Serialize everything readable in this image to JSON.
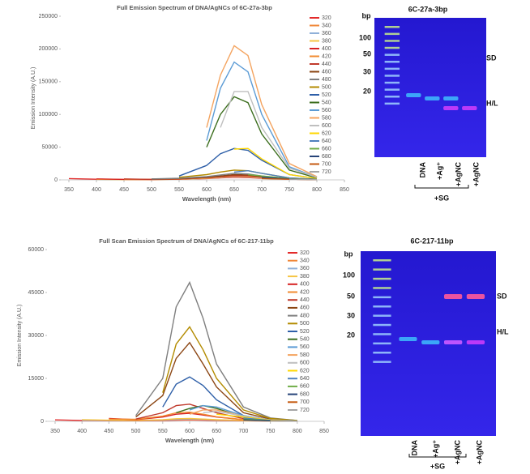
{
  "chart_data": [
    {
      "type": "line",
      "title": "Full Emission Spectrum of DNA/AgNCs of 6C-27a-3bp",
      "x_label": "Wavelength (nm)",
      "y_label": "Emission Intensity (A.U.)",
      "x": [
        350,
        400,
        450,
        500,
        550,
        600,
        625,
        650,
        675,
        700,
        750,
        800
      ],
      "xlim": [
        350,
        850
      ],
      "xticks": [
        350,
        400,
        450,
        500,
        550,
        600,
        650,
        700,
        750,
        800,
        850
      ],
      "ylim": [
        0,
        250000
      ],
      "yticks": [
        0,
        50000,
        100000,
        150000,
        200000,
        250000
      ],
      "grid": false,
      "legend": "right",
      "series": [
        {
          "name": "320",
          "color": "#e32b2b",
          "values": [
            2000,
            1000,
            500,
            500,
            1000,
            2000,
            3000,
            4000,
            3500,
            2500,
            1000,
            500
          ]
        },
        {
          "name": "340",
          "color": "#f0883a",
          "values": [
            null,
            1000,
            500,
            500,
            1000,
            2500,
            3500,
            5000,
            4500,
            3000,
            1000,
            500
          ]
        },
        {
          "name": "360",
          "color": "#8fb0d8",
          "values": [
            null,
            500,
            300,
            400,
            1000,
            2500,
            3500,
            5000,
            4500,
            3000,
            1000,
            500
          ]
        },
        {
          "name": "380",
          "color": "#f6c543",
          "values": [
            null,
            800,
            400,
            400,
            1000,
            2500,
            4000,
            5500,
            5000,
            3500,
            1500,
            500
          ]
        },
        {
          "name": "400",
          "color": "#d62020",
          "values": [
            null,
            1500,
            800,
            600,
            1200,
            3000,
            4500,
            6000,
            5500,
            4000,
            1500,
            500
          ]
        },
        {
          "name": "420",
          "color": "#f28b30",
          "values": [
            null,
            null,
            1000,
            700,
            1300,
            3000,
            4500,
            6500,
            6000,
            4000,
            1500,
            500
          ]
        },
        {
          "name": "440",
          "color": "#c0392b",
          "values": [
            null,
            null,
            1500,
            800,
            1500,
            3500,
            5000,
            7000,
            6500,
            4500,
            1500,
            500
          ]
        },
        {
          "name": "460",
          "color": "#8b4513",
          "values": [
            null,
            null,
            null,
            1200,
            2000,
            4000,
            6000,
            8000,
            7500,
            5000,
            2000,
            800
          ]
        },
        {
          "name": "480",
          "color": "#7f7f7f",
          "values": [
            null,
            null,
            null,
            1500,
            2500,
            5000,
            7500,
            10000,
            9000,
            6000,
            2000,
            800
          ]
        },
        {
          "name": "500",
          "color": "#b38b00",
          "values": [
            null,
            null,
            null,
            null,
            4000,
            8000,
            12000,
            15000,
            14000,
            10000,
            3000,
            1000
          ]
        },
        {
          "name": "520",
          "color": "#2e5fa8",
          "values": [
            null,
            null,
            null,
            null,
            6000,
            22000,
            40000,
            48000,
            45000,
            30000,
            8000,
            2000
          ]
        },
        {
          "name": "540",
          "color": "#3c6e1e",
          "values": [
            null,
            null,
            null,
            null,
            null,
            50000,
            100000,
            127000,
            118000,
            70000,
            15000,
            3000
          ]
        },
        {
          "name": "560",
          "color": "#5b9bd5",
          "values": [
            null,
            null,
            null,
            null,
            null,
            60000,
            140000,
            180000,
            165000,
            100000,
            20000,
            4000
          ]
        },
        {
          "name": "580",
          "color": "#f4a460",
          "values": [
            null,
            null,
            null,
            null,
            null,
            80000,
            160000,
            205000,
            190000,
            115000,
            25000,
            5000
          ]
        },
        {
          "name": "600",
          "color": "#bfbfbf",
          "values": [
            null,
            null,
            null,
            null,
            null,
            null,
            80000,
            135000,
            135000,
            80000,
            18000,
            4000
          ]
        },
        {
          "name": "620",
          "color": "#ffd700",
          "values": [
            null,
            null,
            null,
            null,
            null,
            null,
            null,
            47000,
            48000,
            32000,
            8000,
            2000
          ]
        },
        {
          "name": "640",
          "color": "#4f81bd",
          "values": [
            null,
            null,
            null,
            null,
            null,
            null,
            null,
            12000,
            14000,
            10000,
            3000,
            1000
          ]
        },
        {
          "name": "660",
          "color": "#70ad47",
          "values": [
            null,
            null,
            null,
            null,
            null,
            null,
            null,
            null,
            8000,
            6000,
            2000,
            800
          ]
        },
        {
          "name": "680",
          "color": "#264478",
          "values": [
            null,
            null,
            null,
            null,
            null,
            null,
            null,
            null,
            null,
            4000,
            1500,
            500
          ]
        },
        {
          "name": "700",
          "color": "#c55a11",
          "values": [
            null,
            null,
            null,
            null,
            null,
            null,
            null,
            null,
            null,
            2000,
            1000,
            400
          ]
        },
        {
          "name": "720",
          "color": "#a5a5a5",
          "values": [
            null,
            null,
            null,
            null,
            null,
            null,
            null,
            null,
            null,
            null,
            1000,
            400
          ]
        }
      ]
    },
    {
      "type": "line",
      "title": "Full Scan Emission Spectrum of DNA/AgNCs of 6C-217-11bp",
      "x_label": "Wavelength (nm)",
      "y_label": "Emission Intensity (A.U.)",
      "x": [
        350,
        400,
        450,
        500,
        550,
        575,
        600,
        625,
        650,
        700,
        750,
        800
      ],
      "xlim": [
        350,
        850
      ],
      "xticks": [
        350,
        400,
        450,
        500,
        550,
        600,
        650,
        700,
        750,
        800,
        850
      ],
      "ylim": [
        0,
        60000
      ],
      "yticks": [
        0,
        15000,
        30000,
        45000,
        60000
      ],
      "grid": false,
      "legend": "right",
      "series": [
        {
          "name": "320",
          "color": "#e32b2b",
          "values": [
            500,
            300,
            200,
            200,
            300,
            400,
            500,
            400,
            300,
            200,
            100,
            50
          ]
        },
        {
          "name": "340",
          "color": "#f0883a",
          "values": [
            null,
            500,
            300,
            300,
            400,
            600,
            700,
            600,
            400,
            300,
            100,
            50
          ]
        },
        {
          "name": "360",
          "color": "#8fb0d8",
          "values": [
            null,
            400,
            300,
            300,
            500,
            700,
            800,
            700,
            500,
            300,
            100,
            50
          ]
        },
        {
          "name": "380",
          "color": "#f6c543",
          "values": [
            null,
            600,
            400,
            300,
            600,
            900,
            1000,
            800,
            600,
            300,
            100,
            50
          ]
        },
        {
          "name": "400",
          "color": "#d62020",
          "values": [
            null,
            null,
            1000,
            600,
            1500,
            2500,
            2800,
            2200,
            1500,
            600,
            200,
            100
          ]
        },
        {
          "name": "420",
          "color": "#f28b30",
          "values": [
            null,
            null,
            800,
            700,
            1800,
            3000,
            3200,
            2500,
            1600,
            600,
            200,
            100
          ]
        },
        {
          "name": "440",
          "color": "#c0392b",
          "values": [
            null,
            null,
            null,
            800,
            3000,
            5500,
            6000,
            4500,
            3000,
            1000,
            300,
            100
          ]
        },
        {
          "name": "460",
          "color": "#8b4513",
          "values": [
            null,
            null,
            null,
            1500,
            9000,
            22000,
            27500,
            20000,
            12000,
            3000,
            800,
            200
          ]
        },
        {
          "name": "480",
          "color": "#7f7f7f",
          "values": [
            null,
            null,
            null,
            2000,
            15000,
            40000,
            48500,
            36000,
            20000,
            5000,
            1200,
            300
          ]
        },
        {
          "name": "500",
          "color": "#b38b00",
          "values": [
            null,
            null,
            null,
            null,
            10000,
            27000,
            33000,
            25000,
            15000,
            4000,
            1000,
            300
          ]
        },
        {
          "name": "520",
          "color": "#2e5fa8",
          "values": [
            null,
            null,
            null,
            null,
            5000,
            13000,
            15500,
            12500,
            7500,
            2000,
            500,
            200
          ]
        },
        {
          "name": "540",
          "color": "#3c6e1e",
          "values": [
            null,
            null,
            null,
            null,
            null,
            3000,
            4500,
            5500,
            4500,
            1500,
            400,
            100
          ]
        },
        {
          "name": "560",
          "color": "#5b9bd5",
          "values": [
            null,
            null,
            null,
            null,
            null,
            null,
            4000,
            5500,
            5000,
            2000,
            500,
            200
          ]
        },
        {
          "name": "580",
          "color": "#f4a460",
          "values": [
            null,
            null,
            null,
            null,
            null,
            null,
            2500,
            4000,
            4000,
            1800,
            500,
            200
          ]
        },
        {
          "name": "600",
          "color": "#bfbfbf",
          "values": [
            null,
            null,
            null,
            null,
            null,
            null,
            null,
            3000,
            3500,
            1800,
            500,
            200
          ]
        },
        {
          "name": "620",
          "color": "#ffd700",
          "values": [
            null,
            null,
            null,
            null,
            null,
            null,
            null,
            null,
            2500,
            1500,
            400,
            150
          ]
        },
        {
          "name": "640",
          "color": "#4f81bd",
          "values": [
            null,
            null,
            null,
            null,
            null,
            null,
            null,
            null,
            null,
            1200,
            300,
            100
          ]
        },
        {
          "name": "660",
          "color": "#70ad47",
          "values": [
            null,
            null,
            null,
            null,
            null,
            null,
            null,
            null,
            null,
            800,
            250,
            100
          ]
        },
        {
          "name": "680",
          "color": "#264478",
          "values": [
            null,
            null,
            null,
            null,
            null,
            null,
            null,
            null,
            null,
            500,
            200,
            80
          ]
        },
        {
          "name": "700",
          "color": "#c55a11",
          "values": [
            null,
            null,
            null,
            null,
            null,
            null,
            null,
            null,
            null,
            null,
            200,
            80
          ]
        },
        {
          "name": "720",
          "color": "#a5a5a5",
          "values": [
            null,
            null,
            null,
            null,
            null,
            null,
            null,
            null,
            null,
            null,
            150,
            60
          ]
        }
      ]
    }
  ],
  "gels": [
    {
      "title": "6C-27a-3bp",
      "unit": "bp",
      "markers": [
        100,
        50,
        30,
        20
      ],
      "bands": [
        "SD",
        "H/L"
      ],
      "lanes": [
        "DNA",
        "+Ag⁺",
        "+AgNC",
        "+AgNC"
      ],
      "group": "+SG"
    },
    {
      "title": "6C-217-11bp",
      "unit": "bp",
      "markers": [
        100,
        50,
        30,
        20
      ],
      "bands": [
        "SD",
        "H/L"
      ],
      "lanes": [
        "DNA",
        "+Ag⁺",
        "+AgNC",
        "+AgNC"
      ],
      "group": "+SG"
    }
  ]
}
